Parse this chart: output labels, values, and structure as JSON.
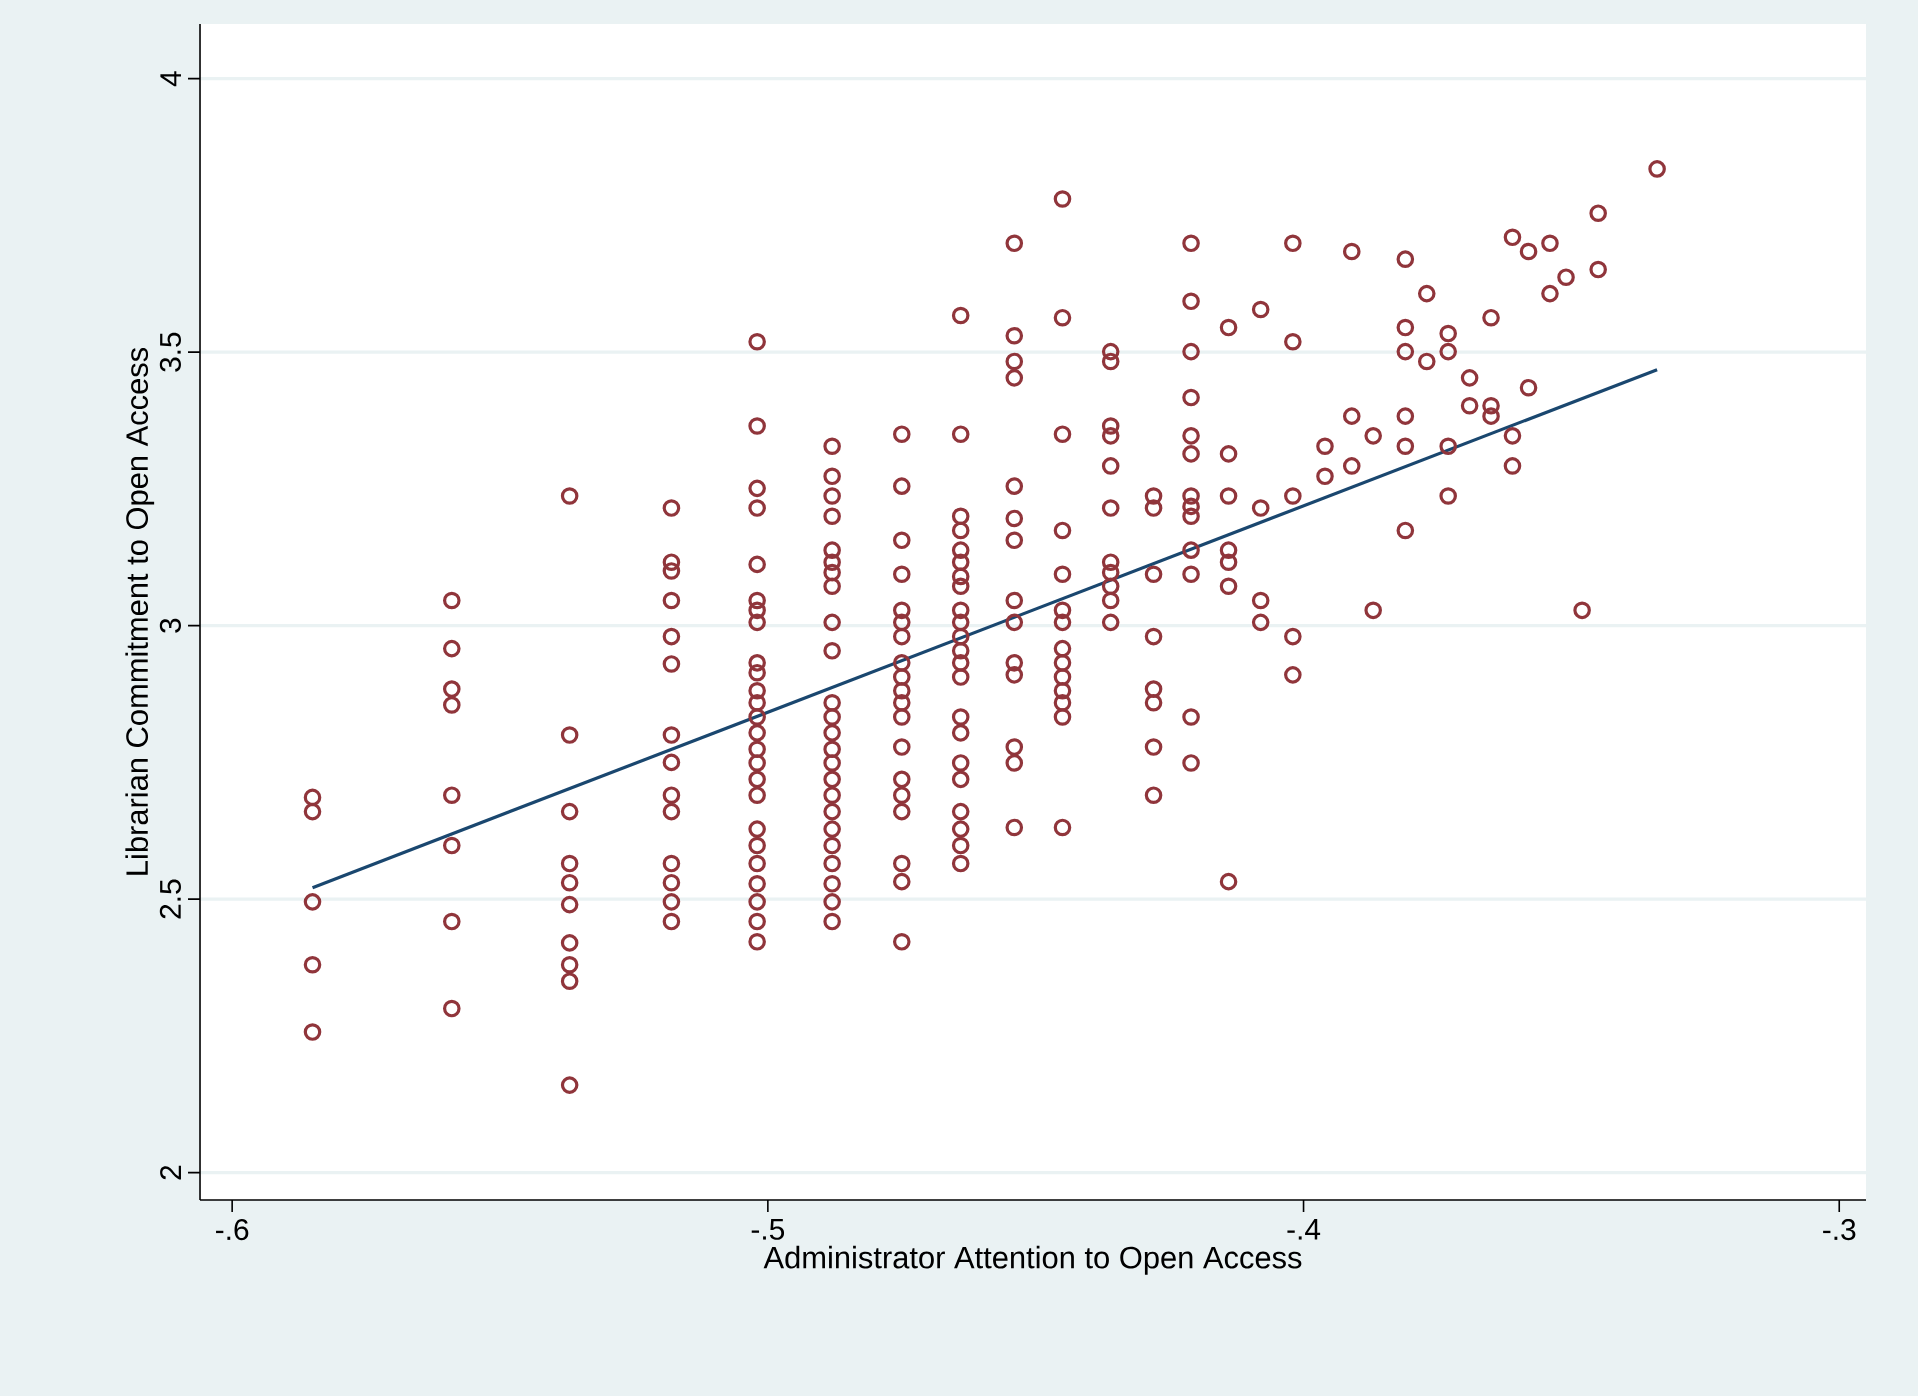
{
  "chart_data": {
    "type": "scatter",
    "xlabel": "Administrator Attention to Open Access",
    "ylabel": "Librarian Commitment to Open Access",
    "xlim": [
      -0.606,
      -0.295
    ],
    "ylim": [
      1.95,
      4.1
    ],
    "xticks": [
      {
        "value": -0.6,
        "label": "-.6"
      },
      {
        "value": -0.5,
        "label": "-.5"
      },
      {
        "value": -0.4,
        "label": "-.4"
      },
      {
        "value": -0.3,
        "label": "-.3"
      }
    ],
    "yticks": [
      2,
      2.5,
      3,
      3.5,
      4
    ],
    "grid": "y",
    "series": [
      {
        "marker": "circle",
        "color": "#90353b",
        "x": [
          -0.585,
          -0.585,
          -0.585,
          -0.585,
          -0.585,
          -0.559,
          -0.559,
          -0.559,
          -0.559,
          -0.559,
          -0.559,
          -0.559,
          -0.559,
          -0.537,
          -0.537,
          -0.537,
          -0.537,
          -0.537,
          -0.537,
          -0.537,
          -0.537,
          -0.537,
          -0.537,
          -0.518,
          -0.518,
          -0.518,
          -0.518,
          -0.518,
          -0.518,
          -0.518,
          -0.518,
          -0.518,
          -0.518,
          -0.518,
          -0.518,
          -0.518,
          -0.518,
          -0.502,
          -0.502,
          -0.502,
          -0.502,
          -0.502,
          -0.502,
          -0.502,
          -0.502,
          -0.502,
          -0.502,
          -0.502,
          -0.502,
          -0.502,
          -0.502,
          -0.502,
          -0.502,
          -0.502,
          -0.502,
          -0.502,
          -0.502,
          -0.502,
          -0.502,
          -0.502,
          -0.502,
          -0.502,
          -0.488,
          -0.488,
          -0.488,
          -0.488,
          -0.488,
          -0.488,
          -0.488,
          -0.488,
          -0.488,
          -0.488,
          -0.488,
          -0.488,
          -0.488,
          -0.488,
          -0.488,
          -0.488,
          -0.488,
          -0.488,
          -0.488,
          -0.488,
          -0.488,
          -0.488,
          -0.488,
          -0.488,
          -0.475,
          -0.475,
          -0.475,
          -0.475,
          -0.475,
          -0.475,
          -0.475,
          -0.475,
          -0.475,
          -0.475,
          -0.475,
          -0.475,
          -0.475,
          -0.475,
          -0.475,
          -0.475,
          -0.475,
          -0.475,
          -0.475,
          -0.464,
          -0.464,
          -0.464,
          -0.464,
          -0.464,
          -0.464,
          -0.464,
          -0.464,
          -0.464,
          -0.464,
          -0.464,
          -0.464,
          -0.464,
          -0.464,
          -0.464,
          -0.464,
          -0.464,
          -0.464,
          -0.464,
          -0.464,
          -0.464,
          -0.464,
          -0.454,
          -0.454,
          -0.454,
          -0.454,
          -0.454,
          -0.454,
          -0.454,
          -0.454,
          -0.454,
          -0.454,
          -0.454,
          -0.454,
          -0.454,
          -0.454,
          -0.445,
          -0.445,
          -0.445,
          -0.445,
          -0.445,
          -0.445,
          -0.445,
          -0.445,
          -0.445,
          -0.445,
          -0.445,
          -0.445,
          -0.445,
          -0.445,
          -0.436,
          -0.436,
          -0.436,
          -0.436,
          -0.436,
          -0.436,
          -0.436,
          -0.436,
          -0.436,
          -0.436,
          -0.436,
          -0.428,
          -0.428,
          -0.428,
          -0.428,
          -0.428,
          -0.428,
          -0.428,
          -0.428,
          -0.421,
          -0.421,
          -0.421,
          -0.421,
          -0.421,
          -0.421,
          -0.421,
          -0.421,
          -0.421,
          -0.421,
          -0.421,
          -0.421,
          -0.421,
          -0.414,
          -0.414,
          -0.414,
          -0.414,
          -0.414,
          -0.414,
          -0.414,
          -0.408,
          -0.408,
          -0.408,
          -0.408,
          -0.402,
          -0.402,
          -0.402,
          -0.402,
          -0.402,
          -0.396,
          -0.396,
          -0.391,
          -0.391,
          -0.391,
          -0.387,
          -0.387,
          -0.381,
          -0.381,
          -0.381,
          -0.381,
          -0.381,
          -0.381,
          -0.377,
          -0.377,
          -0.373,
          -0.373,
          -0.373,
          -0.373,
          -0.369,
          -0.369,
          -0.365,
          -0.365,
          -0.365,
          -0.361,
          -0.361,
          -0.361,
          -0.358,
          -0.358,
          -0.354,
          -0.354,
          -0.351,
          -0.348,
          -0.345,
          -0.345,
          -0.334
        ],
        "values": [
          2.686,
          2.66,
          2.495,
          2.38,
          2.257,
          3.046,
          2.958,
          2.884,
          2.855,
          2.69,
          2.598,
          2.459,
          2.3,
          3.237,
          2.8,
          2.66,
          2.565,
          2.53,
          2.49,
          2.42,
          2.38,
          2.35,
          2.16,
          3.215,
          3.116,
          3.1,
          3.046,
          2.98,
          2.93,
          2.8,
          2.75,
          2.69,
          2.66,
          2.565,
          2.53,
          2.495,
          2.459,
          3.519,
          3.365,
          3.251,
          3.215,
          3.112,
          3.046,
          3.028,
          3.006,
          2.932,
          2.914,
          2.881,
          2.859,
          2.833,
          2.804,
          2.774,
          2.749,
          2.719,
          2.69,
          2.628,
          2.598,
          2.565,
          2.528,
          2.495,
          2.459,
          2.422,
          3.328,
          3.273,
          3.237,
          3.2,
          3.138,
          3.116,
          3.097,
          3.072,
          3.006,
          2.954,
          2.859,
          2.833,
          2.804,
          2.774,
          2.749,
          2.719,
          2.69,
          2.66,
          2.628,
          2.598,
          2.565,
          2.528,
          2.495,
          2.459,
          3.35,
          3.255,
          3.156,
          3.094,
          3.028,
          3.006,
          2.98,
          2.932,
          2.906,
          2.881,
          2.859,
          2.833,
          2.778,
          2.719,
          2.69,
          2.66,
          2.565,
          2.532,
          2.422,
          3.567,
          3.35,
          3.2,
          3.174,
          3.138,
          3.116,
          3.09,
          3.072,
          3.028,
          3.006,
          2.98,
          2.954,
          2.932,
          2.906,
          2.833,
          2.804,
          2.749,
          2.719,
          2.66,
          2.628,
          2.598,
          2.565,
          3.699,
          3.53,
          3.483,
          3.453,
          3.255,
          3.196,
          3.156,
          3.046,
          3.006,
          2.932,
          2.91,
          2.778,
          2.749,
          2.631,
          3.78,
          3.563,
          3.35,
          3.174,
          3.094,
          3.028,
          3.006,
          2.958,
          2.932,
          2.906,
          2.881,
          2.859,
          2.833,
          2.631,
          3.501,
          3.483,
          3.365,
          3.347,
          3.292,
          3.215,
          3.116,
          3.097,
          3.072,
          3.046,
          3.006,
          3.237,
          3.215,
          3.094,
          2.98,
          2.884,
          2.859,
          2.778,
          2.69,
          3.699,
          3.593,
          3.501,
          3.417,
          3.347,
          3.314,
          3.237,
          3.218,
          3.2,
          3.138,
          3.094,
          2.833,
          2.749,
          3.545,
          3.314,
          3.237,
          3.138,
          3.116,
          3.072,
          2.532,
          3.578,
          3.215,
          3.046,
          3.006,
          3.699,
          3.519,
          3.237,
          2.98,
          2.91,
          3.328,
          3.273,
          3.684,
          3.383,
          3.292,
          3.347,
          3.028,
          3.67,
          3.545,
          3.501,
          3.383,
          3.328,
          3.174,
          3.607,
          3.483,
          3.534,
          3.501,
          3.328,
          3.237,
          3.453,
          3.402,
          3.563,
          3.402,
          3.383,
          3.71,
          3.347,
          3.292,
          3.684,
          3.435,
          3.699,
          3.607,
          3.637,
          3.028,
          3.754,
          3.651,
          3.835
        ]
      },
      {
        "type": "line",
        "marker": "none",
        "color": "#1a476f",
        "x": [
          -0.585,
          -0.334
        ],
        "values": [
          2.521,
          3.468
        ]
      }
    ]
  }
}
